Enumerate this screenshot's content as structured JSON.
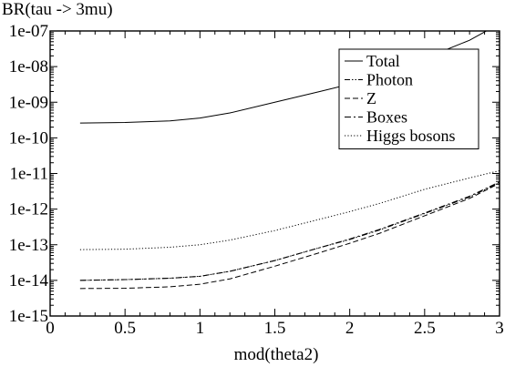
{
  "chart_data": {
    "type": "line",
    "title": "BR(tau -> 3mu)",
    "xlabel": "mod(theta2)",
    "ylabel": "",
    "xlim": [
      0,
      3
    ],
    "ylim": [
      1e-15,
      1e-07
    ],
    "yscale": "log",
    "grid": false,
    "legend_position": "top-right",
    "x_ticks": [
      "0",
      "0.5",
      "1",
      "1.5",
      "2",
      "2.5",
      "3"
    ],
    "y_ticks": [
      "1e-15",
      "1e-14",
      "1e-13",
      "1e-12",
      "1e-11",
      "1e-10",
      "1e-09",
      "1e-08",
      "1e-07"
    ],
    "x": [
      0.2,
      0.5,
      0.8,
      1.0,
      1.2,
      1.5,
      1.8,
      2.0,
      2.2,
      2.5,
      2.8,
      3.0
    ],
    "series": [
      {
        "name": "Total",
        "style": "solid",
        "values": [
          2.6e-10,
          2.7e-10,
          3e-10,
          3.6e-10,
          5e-10,
          1e-09,
          2e-09,
          3.2e-09,
          6e-09,
          1.7e-08,
          5.5e-08,
          1.6e-07
        ]
      },
      {
        "name": "Photon",
        "style": "dash-dot-dot",
        "values": [
          1e-14,
          1.05e-14,
          1.15e-14,
          1.3e-14,
          1.8e-14,
          3.6e-14,
          8.3e-14,
          1.4e-13,
          2.6e-13,
          7.5e-13,
          2.2e-12,
          5.5e-12
        ]
      },
      {
        "name": "Z",
        "style": "dashed",
        "values": [
          5.9e-15,
          6e-15,
          6.6e-15,
          7.8e-15,
          1.1e-14,
          2.5e-14,
          6e-14,
          1.1e-13,
          2.1e-13,
          6.5e-13,
          2e-12,
          5.3e-12
        ]
      },
      {
        "name": "Boxes",
        "style": "dash-dot",
        "values": [
          1e-14,
          1.05e-14,
          1.15e-14,
          1.3e-14,
          1.8e-14,
          3.6e-14,
          8.3e-14,
          1.45e-13,
          2.7e-13,
          7.8e-13,
          2.3e-12,
          5.8e-12
        ]
      },
      {
        "name": "Higgs bosons",
        "style": "dotted",
        "values": [
          7.3e-14,
          7.5e-14,
          8.5e-14,
          1e-13,
          1.35e-13,
          2.5e-13,
          5.2e-13,
          8.5e-13,
          1.45e-12,
          3.6e-12,
          7.5e-12,
          1.2e-11
        ]
      }
    ]
  }
}
